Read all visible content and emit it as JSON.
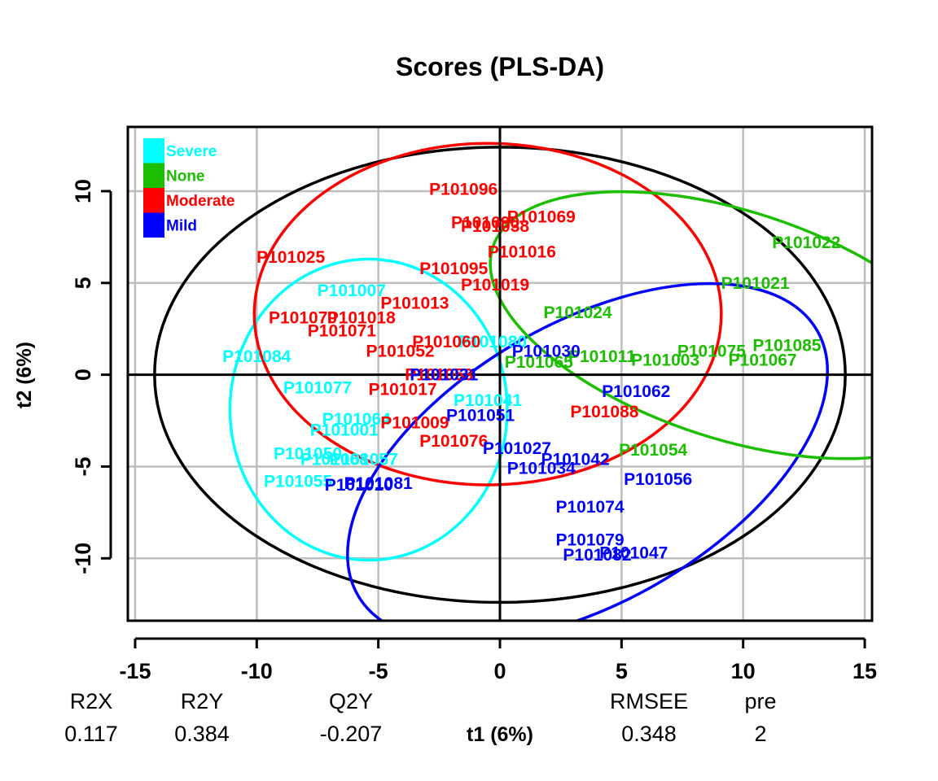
{
  "chart_data": {
    "type": "scatter",
    "title": "Scores (PLS-DA)",
    "xlabel": "t1 (6%)",
    "ylabel": "t2 (6%)",
    "xlim": [
      -15.3,
      15.3
    ],
    "ylim": [
      -13.4,
      13.5
    ],
    "xticks": [
      -15,
      -10,
      -5,
      0,
      5,
      10,
      15
    ],
    "yticks": [
      -10,
      -5,
      0,
      5,
      10
    ],
    "grid": true,
    "legend_position": "top-left",
    "legend": [
      {
        "name": "Severe",
        "color": "#00FFFF"
      },
      {
        "name": "None",
        "color": "#1CBE00"
      },
      {
        "name": "Moderate",
        "color": "#FF0000"
      },
      {
        "name": "Mild",
        "color": "#0000FF"
      }
    ],
    "series": [
      {
        "name": "Severe",
        "color": "#00FFFF",
        "points": [
          {
            "label": "P101007",
            "x": -6.1,
            "y": 4.6
          },
          {
            "label": "P101084",
            "x": -10.0,
            "y": 1.0
          },
          {
            "label": "P101077",
            "x": -7.5,
            "y": -0.7
          },
          {
            "label": "P101080",
            "x": -0.3,
            "y": 1.8
          },
          {
            "label": "P101041",
            "x": -0.5,
            "y": -1.4
          },
          {
            "label": "P101064",
            "x": -5.9,
            "y": -2.4
          },
          {
            "label": "P101001",
            "x": -6.4,
            "y": -3.0
          },
          {
            "label": "P101050",
            "x": -7.9,
            "y": -4.3
          },
          {
            "label": "P101068",
            "x": -6.8,
            "y": -4.6
          },
          {
            "label": "P101057",
            "x": -5.6,
            "y": -4.6
          },
          {
            "label": "P101055",
            "x": -8.3,
            "y": -5.8
          }
        ]
      },
      {
        "name": "None",
        "color": "#1CBE00",
        "points": [
          {
            "label": "P101022",
            "x": 12.6,
            "y": 7.2
          },
          {
            "label": "P101021",
            "x": 10.5,
            "y": 5.0
          },
          {
            "label": "P101024",
            "x": 3.2,
            "y": 3.4
          },
          {
            "label": "P101065",
            "x": 1.6,
            "y": 0.7
          },
          {
            "label": "P101011",
            "x": 4.2,
            "y": 1.0
          },
          {
            "label": "P101075",
            "x": 8.7,
            "y": 1.3
          },
          {
            "label": "P101003",
            "x": 6.8,
            "y": 0.8
          },
          {
            "label": "P101085",
            "x": 11.8,
            "y": 1.6
          },
          {
            "label": "P101067",
            "x": 10.8,
            "y": 0.8
          },
          {
            "label": "P101054",
            "x": 6.3,
            "y": -4.1
          }
        ]
      },
      {
        "name": "Moderate",
        "color": "#FF0000",
        "points": [
          {
            "label": "P101096",
            "x": -1.5,
            "y": 10.1
          },
          {
            "label": "P101090",
            "x": -0.6,
            "y": 8.3
          },
          {
            "label": "P101038",
            "x": -0.2,
            "y": 8.1
          },
          {
            "label": "P101069",
            "x": 1.7,
            "y": 8.6
          },
          {
            "label": "P101016",
            "x": 0.9,
            "y": 6.7
          },
          {
            "label": "P101025",
            "x": -8.6,
            "y": 6.4
          },
          {
            "label": "P101095",
            "x": -1.9,
            "y": 5.8
          },
          {
            "label": "P101019",
            "x": -0.2,
            "y": 4.9
          },
          {
            "label": "P101013",
            "x": -3.5,
            "y": 3.9
          },
          {
            "label": "P101070",
            "x": -8.1,
            "y": 3.1
          },
          {
            "label": "P101018",
            "x": -5.7,
            "y": 3.1
          },
          {
            "label": "P101071",
            "x": -6.5,
            "y": 2.4
          },
          {
            "label": "P101052",
            "x": -4.1,
            "y": 1.3
          },
          {
            "label": "P101060",
            "x": -2.2,
            "y": 1.8
          },
          {
            "label": "P101053",
            "x": -2.5,
            "y": 0.0
          },
          {
            "label": "P101017",
            "x": -4.0,
            "y": -0.8
          },
          {
            "label": "P101009",
            "x": -3.5,
            "y": -2.6
          },
          {
            "label": "P101076",
            "x": -1.9,
            "y": -3.6
          },
          {
            "label": "P101088",
            "x": 4.3,
            "y": -2.0
          }
        ]
      },
      {
        "name": "Mild",
        "color": "#0000FF",
        "points": [
          {
            "label": "P101031",
            "x": -2.3,
            "y": 0.0
          },
          {
            "label": "P101030",
            "x": 1.9,
            "y": 1.3
          },
          {
            "label": "P101062",
            "x": 5.6,
            "y": -0.9
          },
          {
            "label": "P101051",
            "x": -0.8,
            "y": -2.2
          },
          {
            "label": "P101027",
            "x": 0.7,
            "y": -4.0
          },
          {
            "label": "P101042",
            "x": 3.1,
            "y": -4.6
          },
          {
            "label": "P101034",
            "x": 1.7,
            "y": -5.1
          },
          {
            "label": "P101056",
            "x": 6.5,
            "y": -5.7
          },
          {
            "label": "P101010",
            "x": -5.8,
            "y": -6.0
          },
          {
            "label": "P101081",
            "x": -5.0,
            "y": -5.9
          },
          {
            "label": "P101074",
            "x": 3.7,
            "y": -7.2
          },
          {
            "label": "P101079",
            "x": 3.7,
            "y": -9.0
          },
          {
            "label": "P101082",
            "x": 4.0,
            "y": -9.8
          },
          {
            "label": "P101047",
            "x": 5.5,
            "y": -9.7
          }
        ]
      }
    ],
    "ellipses": [
      {
        "name": "overall",
        "color": "#000000",
        "cx": 0.0,
        "cy": 0.0,
        "rx": 14.2,
        "ry": 12.4,
        "angle": 0
      },
      {
        "name": "Severe",
        "color": "#00FFFF",
        "cx": -5.4,
        "cy": -1.9,
        "rx": 5.7,
        "ry": 8.2,
        "angle": 0
      },
      {
        "name": "Moderate",
        "color": "#FF0000",
        "cx": -0.5,
        "cy": 3.3,
        "rx": 9.6,
        "ry": 9.3,
        "angle": 0
      },
      {
        "name": "Mild",
        "color": "#0000FF",
        "cx": 3.6,
        "cy": -4.8,
        "rx": 10.9,
        "ry": 7.6,
        "angle": -30
      },
      {
        "name": "None",
        "color": "#1CBE00",
        "cx": 9.6,
        "cy": 2.7,
        "rx": 10.4,
        "ry": 6.2,
        "angle": 18
      }
    ]
  },
  "summary": {
    "headers": [
      "R2X",
      "R2Y",
      "Q2Y",
      "RMSEE",
      "pre"
    ],
    "values": [
      "0.117",
      "0.384",
      "-0.207",
      "0.348",
      "2"
    ]
  }
}
